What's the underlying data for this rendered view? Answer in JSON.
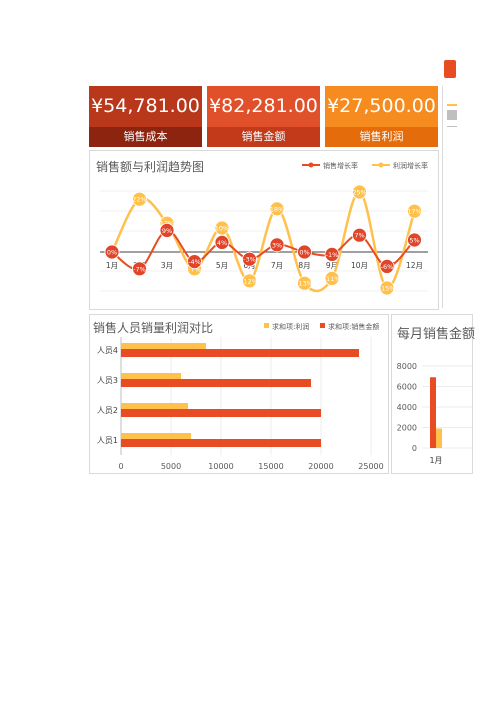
{
  "colors": {
    "orange": "#e84c22",
    "yellow": "#ffc04c",
    "darkred": "#c0311a"
  },
  "kpis": [
    {
      "value": "¥54,781.00",
      "label": "销售成本",
      "bg": "#b9381c",
      "labelbg": "#8c2410"
    },
    {
      "value": "¥82,281.00",
      "label": "销售金额",
      "bg": "#e0502a",
      "labelbg": "#c23a1a"
    },
    {
      "value": "¥27,500.00",
      "label": "销售利润",
      "bg": "#f68b1f",
      "labelbg": "#e46c0a"
    }
  ],
  "trend": {
    "title": "销售额与利润趋势图",
    "legend": [
      "销售增长率",
      "利润增长率"
    ]
  },
  "bars": {
    "title": "销售人员销量利润对比",
    "legend": [
      "求和项:利润",
      "求和项:销售金额"
    ]
  },
  "monthly": {
    "title": "每月销售金额"
  },
  "chart_data": [
    {
      "type": "line",
      "title": "销售额与利润趋势图",
      "x": [
        "1月",
        "2月",
        "3月",
        "4月",
        "5月",
        "6月",
        "7月",
        "8月",
        "9月",
        "10月",
        "11月",
        "12月"
      ],
      "series": [
        {
          "name": "销售增长率",
          "values": [
            0,
            -7,
            9,
            -4,
            4,
            -3,
            3,
            0,
            -1,
            7,
            -6,
            5
          ],
          "labels": [
            "0%",
            "-7%",
            "9%",
            "-4%",
            "4%",
            "-3%",
            "3%",
            "0%",
            "-1%",
            "7%",
            "-6%",
            "5%"
          ]
        },
        {
          "name": "利润增长率",
          "values": [
            0,
            22,
            12,
            -7,
            10,
            -12,
            18,
            -13,
            -11,
            25,
            -15,
            17
          ],
          "labels": [
            "0%",
            "22%",
            "12%",
            "-7%",
            "10%",
            "-12%",
            "18%",
            "-13%",
            "-11%",
            "25%",
            "-15%",
            "17%"
          ]
        }
      ]
    },
    {
      "type": "bar",
      "orientation": "horizontal",
      "title": "销售人员销量利润对比",
      "categories": [
        "人员4",
        "人员3",
        "人员2",
        "人员1"
      ],
      "series": [
        {
          "name": "求和项:利润",
          "values": [
            8500,
            6000,
            6700,
            7000
          ]
        },
        {
          "name": "求和项:销售金额",
          "values": [
            23800,
            19000,
            20000,
            20000
          ]
        }
      ],
      "xlim": [
        0,
        25000
      ],
      "ticks": [
        "0",
        "5000",
        "10000",
        "15000",
        "20000",
        "25000"
      ]
    },
    {
      "type": "bar",
      "title": "每月销售金额",
      "categories": [
        "1月"
      ],
      "series": [
        {
          "values": [
            6900
          ]
        },
        {
          "values": [
            1900
          ]
        }
      ],
      "ylim": [
        0,
        8000
      ],
      "ticks": [
        "0",
        "2000",
        "4000",
        "6000",
        "8000"
      ]
    }
  ]
}
